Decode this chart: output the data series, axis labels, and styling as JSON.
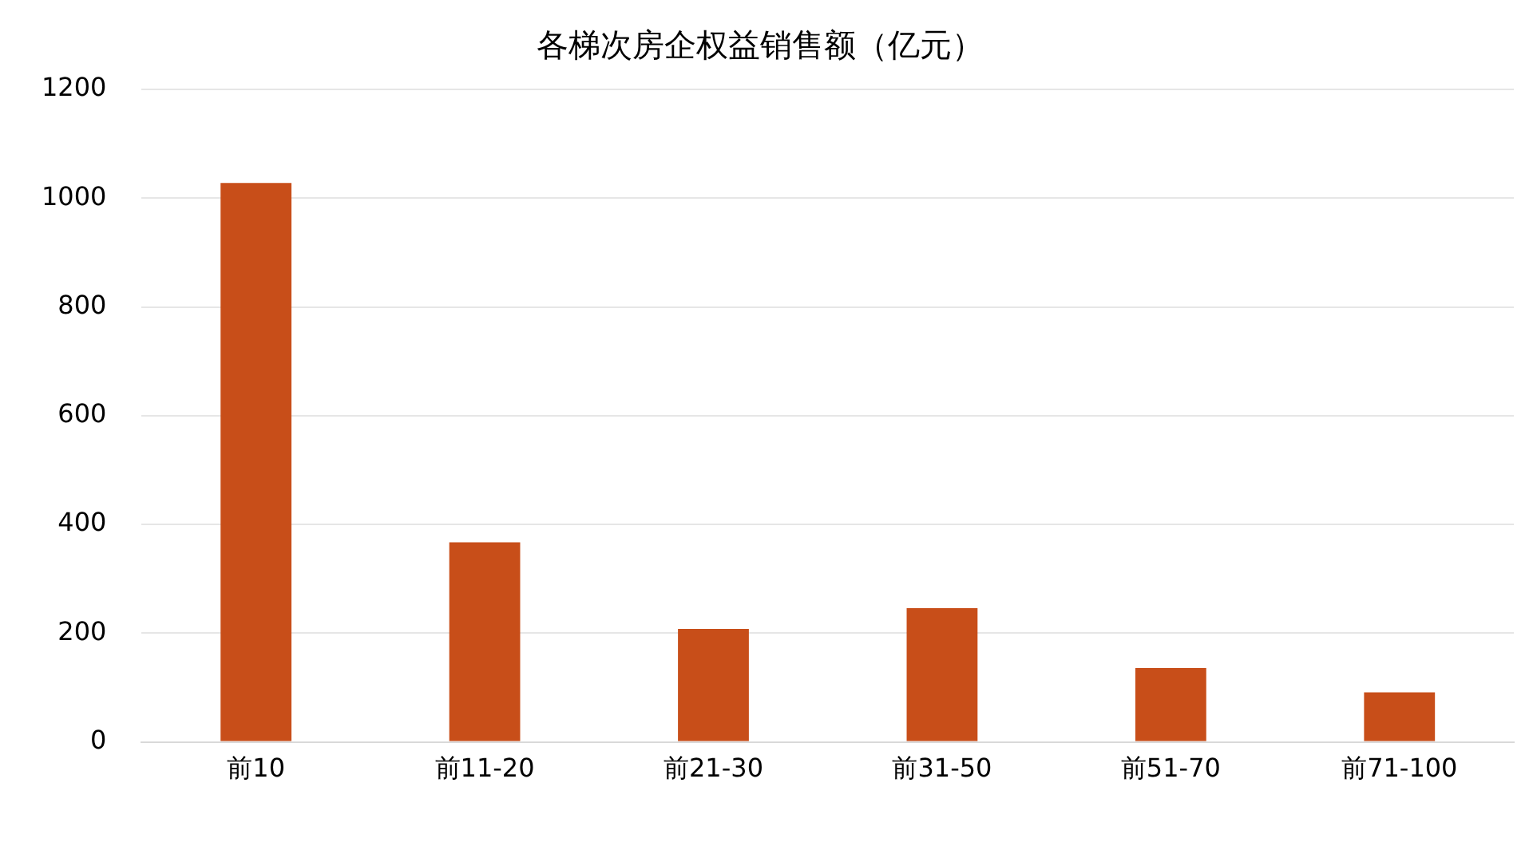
{
  "chart_data": {
    "type": "bar",
    "title": "各梯次房企权益销售额（亿元）",
    "categories": [
      "前10",
      "前11-20",
      "前21-30",
      "前31-50",
      "前51-70",
      "前71-100"
    ],
    "values": [
      1028,
      367,
      208,
      246,
      136,
      91
    ],
    "color": "#c84e19",
    "ylim": [
      0,
      1200
    ],
    "yticks": [
      0,
      200,
      400,
      600,
      800,
      1000,
      1200
    ],
    "grid": "y"
  }
}
